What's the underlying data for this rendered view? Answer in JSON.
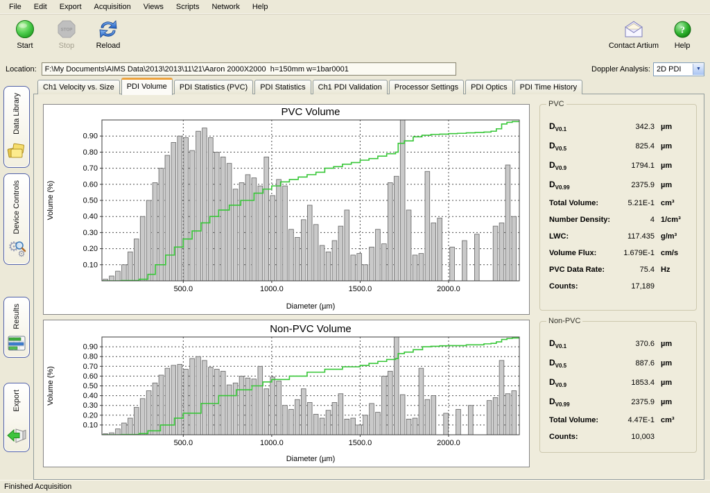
{
  "menu": {
    "items": [
      "File",
      "Edit",
      "Export",
      "Acquisition",
      "Views",
      "Scripts",
      "Network",
      "Help"
    ]
  },
  "toolbar": {
    "start_label": "Start",
    "stop_label": "Stop",
    "stop_glyph_text": "STOP",
    "reload_label": "Reload",
    "contact_label": "Contact Artium",
    "help_label": "Help"
  },
  "location": {
    "label": "Location:",
    "value": "F:\\My Documents\\AIMS Data\\2013\\2013\\11\\21\\Aaron 2000X2000  h=150mm w=1bar0001"
  },
  "doppler": {
    "label": "Doppler Analysis:",
    "value": "2D PDI"
  },
  "sidebar": {
    "items": [
      {
        "label": "Data Library",
        "icon": "folders-icon"
      },
      {
        "label": "Device Controls",
        "icon": "gears-icon"
      },
      {
        "label": "Results",
        "icon": "bar-chart-icon"
      },
      {
        "label": "Export",
        "icon": "export-arrow-icon"
      }
    ]
  },
  "tabs": [
    {
      "label": "Ch1 Velocity vs. Size",
      "active": false
    },
    {
      "label": "PDI Volume",
      "active": true
    },
    {
      "label": "PDI Statistics (PVC)",
      "active": false
    },
    {
      "label": "PDI Statistics",
      "active": false
    },
    {
      "label": "Ch1 PDI Validation",
      "active": false
    },
    {
      "label": "Processor Settings",
      "active": false
    },
    {
      "label": "PDI Optics",
      "active": false
    },
    {
      "label": "PDI Time History",
      "active": false
    }
  ],
  "stats_panels": [
    {
      "title": "PVC",
      "rows": [
        {
          "d": "D",
          "sub": "V0.1",
          "label": "",
          "value": "342.3",
          "unit": "µm"
        },
        {
          "d": "D",
          "sub": "V0.5",
          "label": "",
          "value": "825.4",
          "unit": "µm"
        },
        {
          "d": "D",
          "sub": "V0.9",
          "label": "",
          "value": "1794.1",
          "unit": "µm"
        },
        {
          "d": "D",
          "sub": "V0.99",
          "label": "",
          "value": "2375.9",
          "unit": "µm"
        },
        {
          "d": "",
          "sub": "",
          "label": "Total Volume:",
          "value": "5.21E-1",
          "unit": "cm³"
        },
        {
          "d": "",
          "sub": "",
          "label": "Number Density:",
          "value": "4",
          "unit": "1/cm³"
        },
        {
          "d": "",
          "sub": "",
          "label": "LWC:",
          "value": "117.435",
          "unit": "g/m³"
        },
        {
          "d": "",
          "sub": "",
          "label": "Volume Flux:",
          "value": "1.679E-1",
          "unit": "cm/s"
        },
        {
          "d": "",
          "sub": "",
          "label": "PVC Data Rate:",
          "value": "75.4",
          "unit": "Hz"
        },
        {
          "d": "",
          "sub": "",
          "label": "Counts:",
          "value": "17,189",
          "unit": ""
        }
      ]
    },
    {
      "title": "Non-PVC",
      "rows": [
        {
          "d": "D",
          "sub": "V0.1",
          "label": "",
          "value": "370.6",
          "unit": "µm"
        },
        {
          "d": "D",
          "sub": "V0.5",
          "label": "",
          "value": "887.6",
          "unit": "µm"
        },
        {
          "d": "D",
          "sub": "V0.9",
          "label": "",
          "value": "1853.4",
          "unit": "µm"
        },
        {
          "d": "D",
          "sub": "V0.99",
          "label": "",
          "value": "2375.9",
          "unit": "µm"
        },
        {
          "d": "",
          "sub": "",
          "label": "Total Volume:",
          "value": "4.47E-1",
          "unit": "cm³"
        },
        {
          "d": "",
          "sub": "",
          "label": "Counts:",
          "value": "10,003",
          "unit": ""
        }
      ]
    }
  ],
  "status": {
    "text": "Finished Acquisition"
  },
  "chart_data": [
    {
      "type": "bar",
      "title": "PVC Volume",
      "xlabel": "Diameter (µm)",
      "ylabel": "Volume (%)",
      "xlim": [
        40,
        2400
      ],
      "ylim": [
        0,
        1.0
      ],
      "xticks": [
        500,
        1000,
        1500,
        2000
      ],
      "yticks": [
        0.1,
        0.2,
        0.3,
        0.4,
        0.5,
        0.6,
        0.7,
        0.8,
        0.9
      ],
      "bar_color": "#c9c9c9",
      "bar_edge_color": "#636363",
      "line_color": "#36c636",
      "grid": true,
      "legend": "none",
      "bars": {
        "x0": 60,
        "dx": 35,
        "values": [
          0.01,
          0.03,
          0.06,
          0.1,
          0.18,
          0.26,
          0.4,
          0.5,
          0.61,
          0.7,
          0.78,
          0.86,
          0.9,
          0.89,
          0.81,
          0.93,
          0.95,
          0.89,
          0.8,
          0.77,
          0.73,
          0.57,
          0.61,
          0.66,
          0.64,
          0.59,
          0.77,
          0.53,
          0.63,
          0.59,
          0.32,
          0.27,
          0.38,
          0.47,
          0.35,
          0.22,
          0.18,
          0.25,
          0.34,
          0.44,
          0.16,
          0.17,
          0.1,
          0.21,
          0.32,
          0.23,
          0.61,
          0.65,
          1.0,
          0.44,
          0.16,
          0.17,
          0.68,
          0.36,
          0.39,
          0,
          0.21,
          0,
          0.25,
          0,
          0.29,
          0,
          0,
          0.34,
          0.36,
          0.72,
          0.4
        ]
      },
      "cumulative": [
        [
          40,
          0
        ],
        [
          150,
          0.002
        ],
        [
          250,
          0.01
        ],
        [
          300,
          0.04
        ],
        [
          342,
          0.1
        ],
        [
          400,
          0.16
        ],
        [
          450,
          0.21
        ],
        [
          500,
          0.26
        ],
        [
          550,
          0.31
        ],
        [
          600,
          0.36
        ],
        [
          650,
          0.4
        ],
        [
          700,
          0.44
        ],
        [
          760,
          0.47
        ],
        [
          825,
          0.5
        ],
        [
          900,
          0.545
        ],
        [
          950,
          0.57
        ],
        [
          1000,
          0.59
        ],
        [
          1050,
          0.615
        ],
        [
          1100,
          0.63
        ],
        [
          1150,
          0.645
        ],
        [
          1200,
          0.66
        ],
        [
          1250,
          0.675
        ],
        [
          1300,
          0.7
        ],
        [
          1350,
          0.71
        ],
        [
          1400,
          0.725
        ],
        [
          1450,
          0.735
        ],
        [
          1500,
          0.75
        ],
        [
          1550,
          0.76
        ],
        [
          1600,
          0.775
        ],
        [
          1650,
          0.79
        ],
        [
          1700,
          0.8
        ],
        [
          1715,
          0.855
        ],
        [
          1750,
          0.87
        ],
        [
          1800,
          0.895
        ],
        [
          1850,
          0.905
        ],
        [
          1900,
          0.91
        ],
        [
          1950,
          0.912
        ],
        [
          2000,
          0.915
        ],
        [
          2050,
          0.917
        ],
        [
          2100,
          0.92
        ],
        [
          2150,
          0.922
        ],
        [
          2200,
          0.925
        ],
        [
          2240,
          0.93
        ],
        [
          2270,
          0.945
        ],
        [
          2300,
          0.975
        ],
        [
          2330,
          0.985
        ],
        [
          2360,
          0.99
        ],
        [
          2400,
          0.995
        ]
      ]
    },
    {
      "type": "bar",
      "title": "Non-PVC Volume",
      "xlabel": "Diameter (µm)",
      "ylabel": "Volume (%)",
      "xlim": [
        40,
        2400
      ],
      "ylim": [
        0,
        1.0
      ],
      "xticks": [
        500,
        1000,
        1500,
        2000
      ],
      "yticks": [
        0.1,
        0.2,
        0.3,
        0.4,
        0.5,
        0.6,
        0.7,
        0.8,
        0.9
      ],
      "bar_color": "#c9c9c9",
      "bar_edge_color": "#636363",
      "line_color": "#36c636",
      "grid": true,
      "legend": "none",
      "bars": {
        "x0": 60,
        "dx": 35,
        "values": [
          0.01,
          0.02,
          0.06,
          0.12,
          0.17,
          0.28,
          0.37,
          0.45,
          0.53,
          0.61,
          0.68,
          0.71,
          0.72,
          0.67,
          0.78,
          0.8,
          0.76,
          0.69,
          0.67,
          0.65,
          0.51,
          0.53,
          0.6,
          0.58,
          0.57,
          0.7,
          0.47,
          0.59,
          0.55,
          0.3,
          0.26,
          0.36,
          0.47,
          0.33,
          0.21,
          0.17,
          0.25,
          0.33,
          0.42,
          0.16,
          0.17,
          0.1,
          0.2,
          0.32,
          0.23,
          0.6,
          0.65,
          1.0,
          0.41,
          0.16,
          0.17,
          0.68,
          0.36,
          0.4,
          0,
          0.22,
          0,
          0.26,
          0,
          0.3,
          0,
          0,
          0.35,
          0.38,
          0.76,
          0.42,
          0.45
        ]
      },
      "cumulative": [
        [
          40,
          0
        ],
        [
          150,
          0.002
        ],
        [
          250,
          0.012
        ],
        [
          300,
          0.04
        ],
        [
          371,
          0.1
        ],
        [
          450,
          0.17
        ],
        [
          500,
          0.22
        ],
        [
          600,
          0.32
        ],
        [
          700,
          0.4
        ],
        [
          800,
          0.46
        ],
        [
          888,
          0.5
        ],
        [
          950,
          0.54
        ],
        [
          1000,
          0.565
        ],
        [
          1100,
          0.6
        ],
        [
          1200,
          0.64
        ],
        [
          1300,
          0.67
        ],
        [
          1400,
          0.695
        ],
        [
          1500,
          0.71
        ],
        [
          1550,
          0.73
        ],
        [
          1600,
          0.75
        ],
        [
          1650,
          0.77
        ],
        [
          1700,
          0.78
        ],
        [
          1715,
          0.83
        ],
        [
          1750,
          0.845
        ],
        [
          1800,
          0.87
        ],
        [
          1853,
          0.9
        ],
        [
          1900,
          0.905
        ],
        [
          1950,
          0.91
        ],
        [
          2000,
          0.912
        ],
        [
          2100,
          0.92
        ],
        [
          2200,
          0.93
        ],
        [
          2240,
          0.935
        ],
        [
          2270,
          0.95
        ],
        [
          2300,
          0.975
        ],
        [
          2330,
          0.985
        ],
        [
          2360,
          0.99
        ],
        [
          2400,
          0.995
        ]
      ]
    }
  ]
}
